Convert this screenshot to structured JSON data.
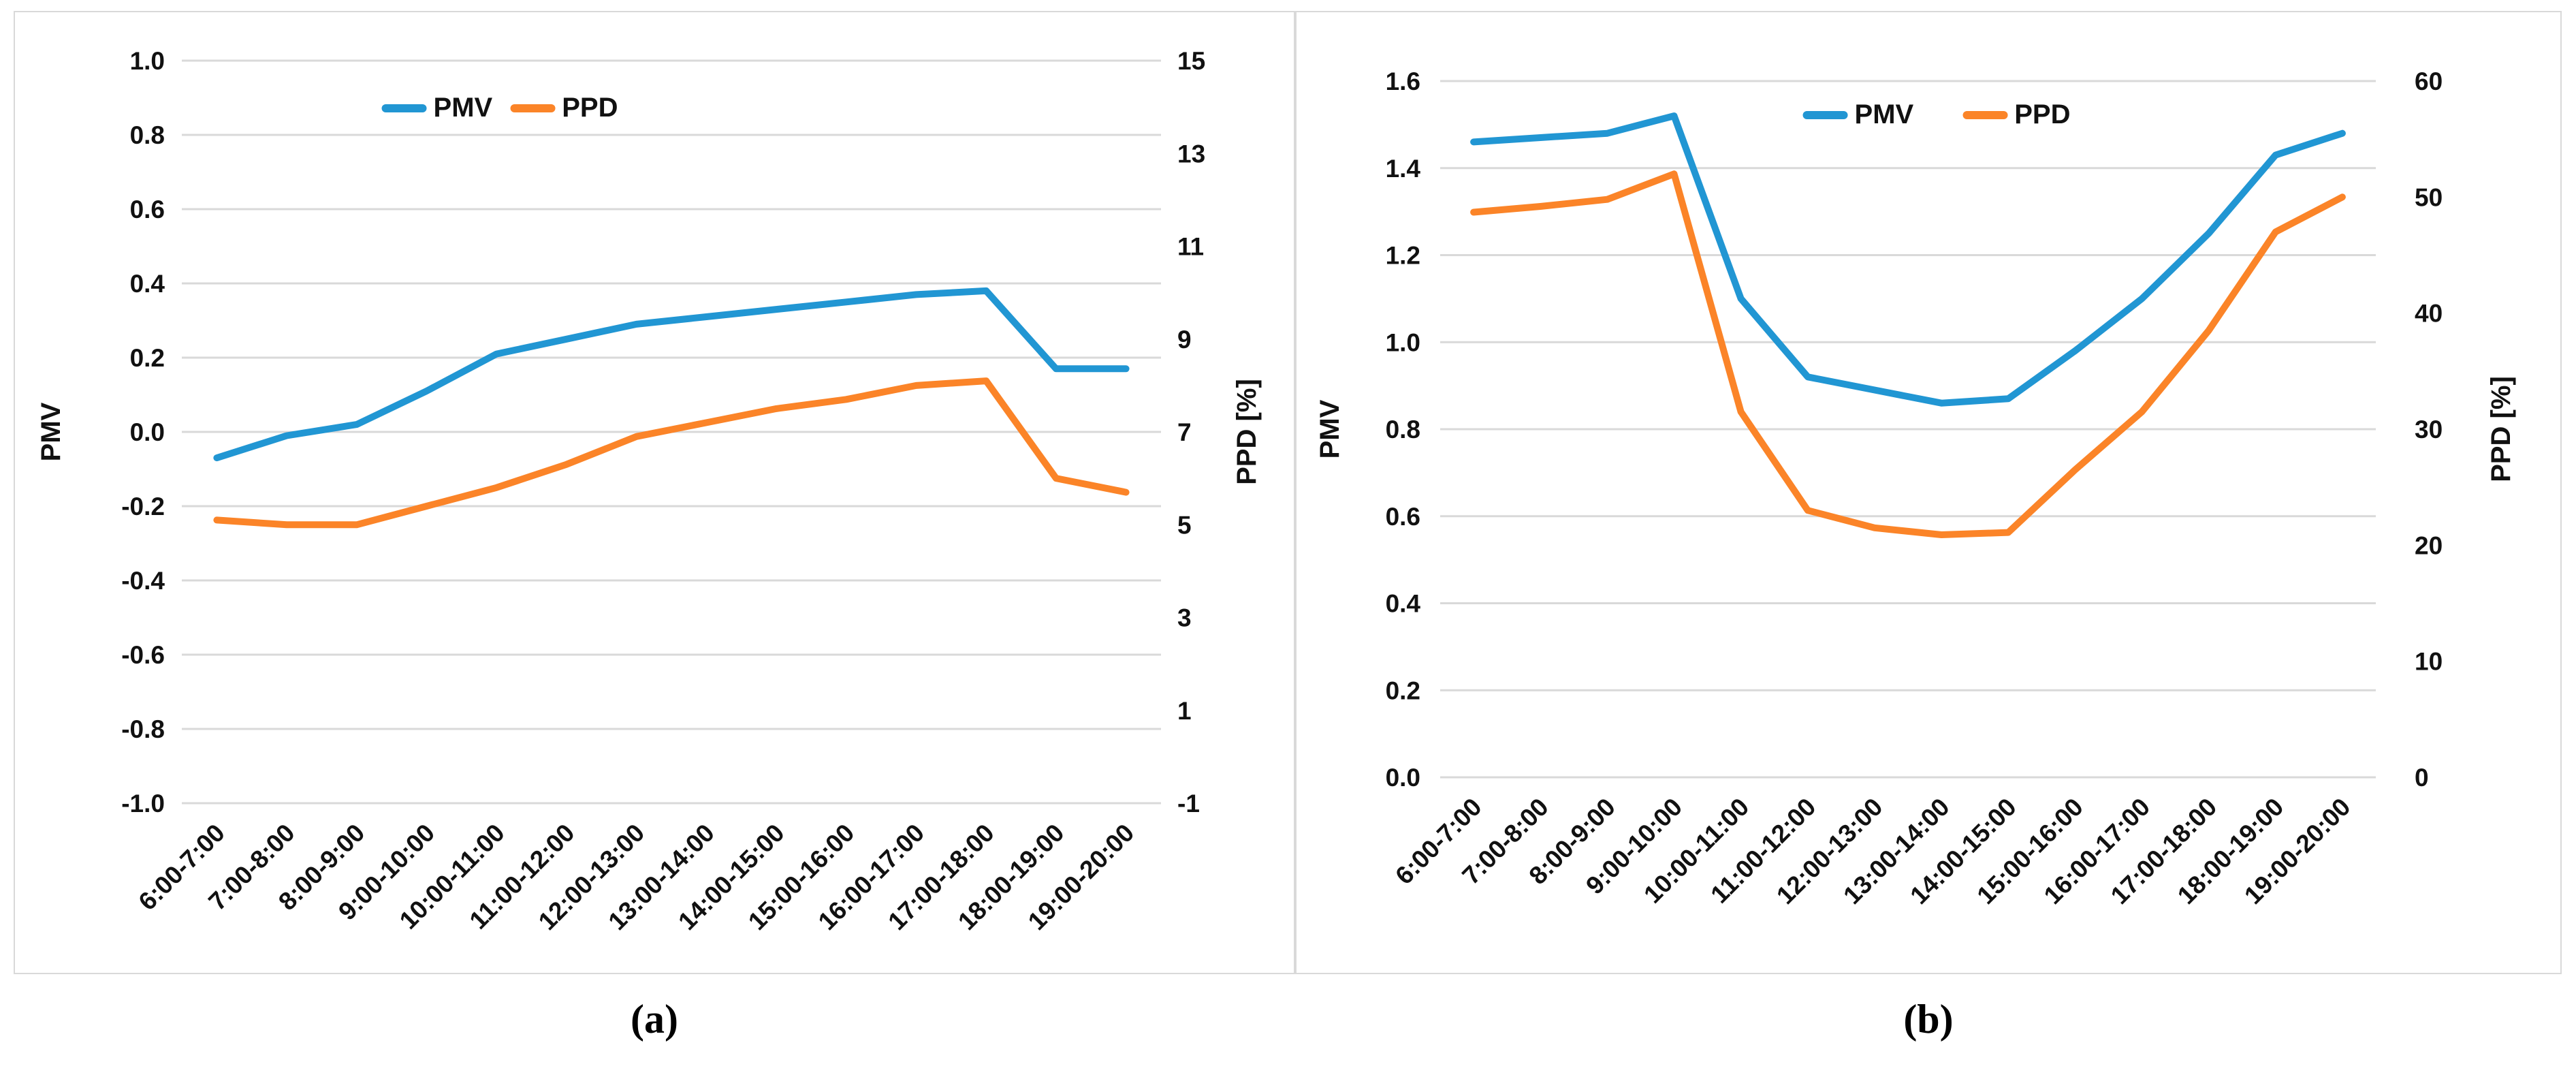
{
  "figure": {
    "background": "#FFFFFF",
    "panel_border_color": "#D9D9D9",
    "gridline_color": "#D9D9D9",
    "text_color": "#111111",
    "captions": {
      "a": "(a)",
      "b": "(b)"
    }
  },
  "chart_data": [
    {
      "id": "a",
      "type": "line",
      "grid": true,
      "legend": {
        "position": "top-center",
        "entries": [
          "PMV",
          "PPD"
        ]
      },
      "categories": [
        "6:00-7:00",
        "7:00-8:00",
        "8:00-9:00",
        "9:00-10:00",
        "10:00-11:00",
        "11:00-12:00",
        "12:00-13:00",
        "13:00-14:00",
        "14:00-15:00",
        "15:00-16:00",
        "16:00-17:00",
        "17:00-18:00",
        "18:00-19:00",
        "19:00-20:00"
      ],
      "left_axis": {
        "label": "PMV",
        "min": -1.0,
        "max": 1.0,
        "ticks": [
          "1.0",
          "0.8",
          "0.6",
          "0.4",
          "0.2",
          "0.0",
          "-0.2",
          "-0.4",
          "-0.6",
          "-0.8",
          "-1.0"
        ]
      },
      "right_axis": {
        "label": "PPD [%]",
        "min": -1,
        "max": 15,
        "ticks": [
          "15",
          "13",
          "11",
          "9",
          "7",
          "5",
          "3",
          "1",
          "-1"
        ]
      },
      "series": [
        {
          "name": "PMV",
          "axis": "left",
          "color": "#2196D3",
          "values": [
            -0.07,
            -0.01,
            0.02,
            0.11,
            0.21,
            0.25,
            0.29,
            0.31,
            0.33,
            0.35,
            0.37,
            0.38,
            0.17,
            0.17
          ]
        },
        {
          "name": "PPD",
          "axis": "right",
          "color": "#FB8428",
          "values": [
            5.1,
            5.0,
            5.0,
            5.4,
            5.8,
            6.3,
            6.9,
            7.2,
            7.5,
            7.7,
            8.0,
            8.1,
            6.0,
            5.7
          ]
        }
      ]
    },
    {
      "id": "b",
      "type": "line",
      "grid": true,
      "legend": {
        "position": "top-center",
        "entries": [
          "PMV",
          "PPD"
        ]
      },
      "categories": [
        "6:00-7:00",
        "7:00-8:00",
        "8:00-9:00",
        "9:00-10:00",
        "10:00-11:00",
        "11:00-12:00",
        "12:00-13:00",
        "13:00-14:00",
        "14:00-15:00",
        "15:00-16:00",
        "16:00-17:00",
        "17:00-18:00",
        "18:00-19:00",
        "19:00-20:00"
      ],
      "left_axis": {
        "label": "PMV",
        "min": 0.0,
        "max": 1.6,
        "ticks": [
          "1.6",
          "1.4",
          "1.2",
          "1.0",
          "0.8",
          "0.6",
          "0.4",
          "0.2",
          "0.0"
        ]
      },
      "right_axis": {
        "label": "PPD [%]",
        "min": 0,
        "max": 60,
        "ticks": [
          "60",
          "50",
          "40",
          "30",
          "20",
          "10",
          "0"
        ]
      },
      "series": [
        {
          "name": "PMV",
          "axis": "left",
          "color": "#2196D3",
          "values": [
            1.46,
            1.47,
            1.48,
            1.52,
            1.1,
            0.92,
            0.89,
            0.86,
            0.87,
            0.98,
            1.1,
            1.25,
            1.43,
            1.48
          ]
        },
        {
          "name": "PPD",
          "axis": "right",
          "color": "#FB8428",
          "values": [
            48.7,
            49.2,
            49.8,
            52.0,
            31.5,
            23.0,
            21.5,
            20.9,
            21.1,
            26.5,
            31.5,
            38.5,
            47.0,
            50.0
          ]
        }
      ]
    }
  ]
}
